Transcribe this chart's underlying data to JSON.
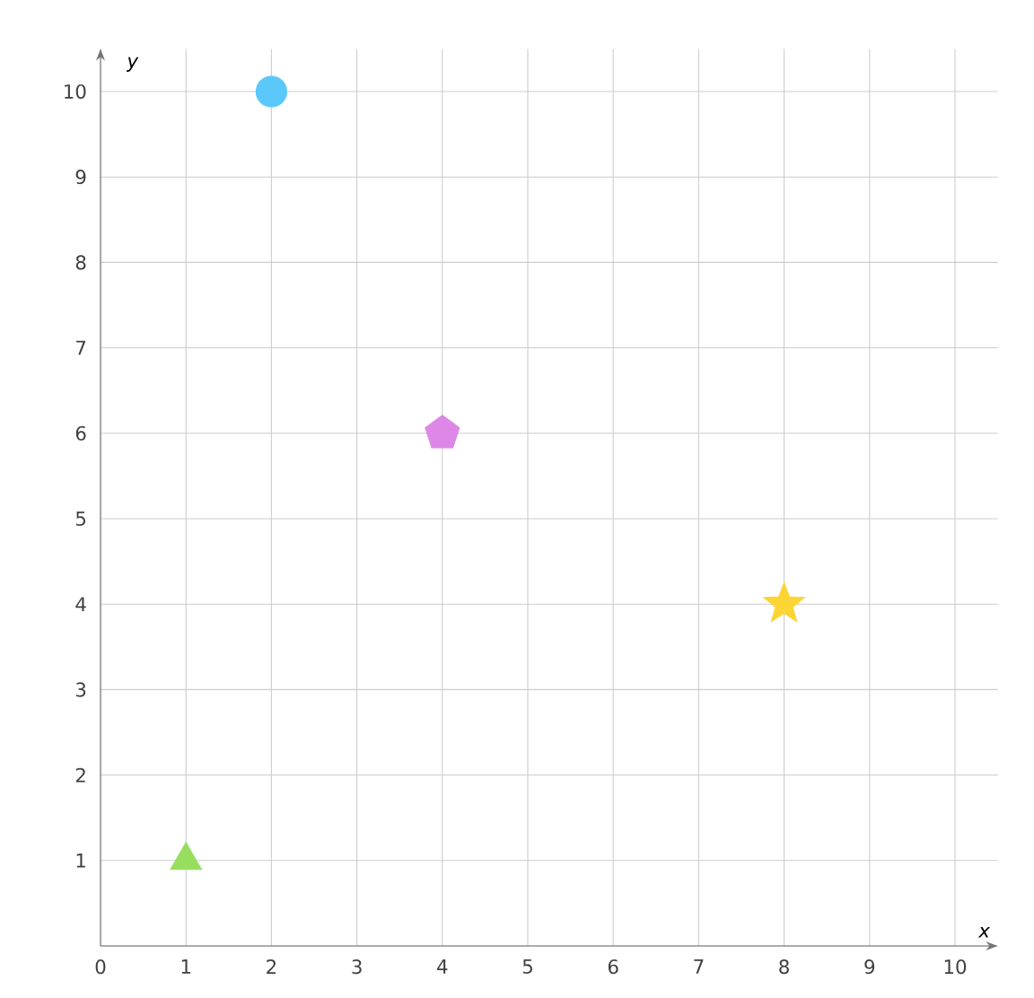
{
  "chart_data": {
    "type": "scatter",
    "xlabel": "x",
    "ylabel": "y",
    "xlim": [
      0,
      10.5
    ],
    "ylim": [
      0,
      10.5
    ],
    "xticks": [
      0,
      1,
      2,
      3,
      4,
      5,
      6,
      7,
      8,
      9,
      10
    ],
    "yticks": [
      {
        "value": 0,
        "label": null
      },
      1,
      2,
      3,
      4,
      5,
      6,
      7,
      8,
      9,
      10
    ],
    "grid": true,
    "series": [
      {
        "color": "#97de5e",
        "marker": "triangle",
        "x": [
          1
        ],
        "values": [
          1
        ]
      },
      {
        "color": "#5ac8fa",
        "marker": "circle",
        "x": [
          2
        ],
        "values": [
          10
        ]
      },
      {
        "color": "#dd88e8",
        "x": [
          4
        ],
        "values": [
          6
        ]
      },
      {
        "color": "#fcd535",
        "marker": "star",
        "x": [
          8
        ],
        "values": [
          4
        ]
      }
    ]
  }
}
